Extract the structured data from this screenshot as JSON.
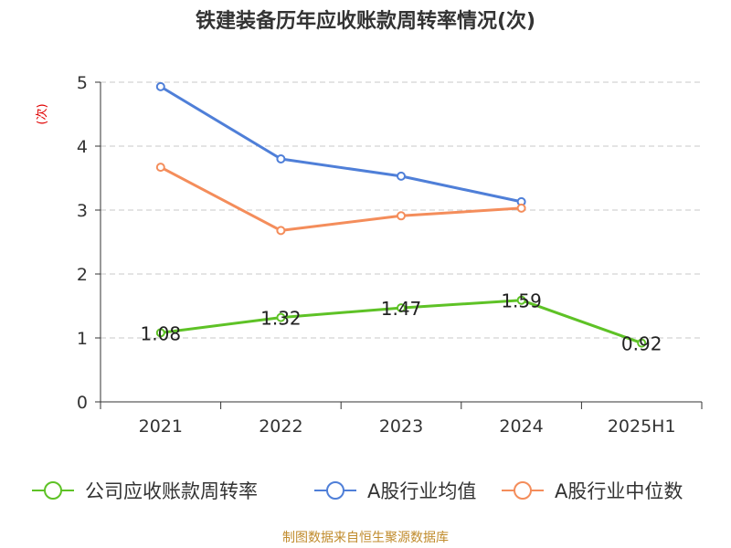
{
  "chart_data": {
    "type": "line",
    "title": "铁建装备历年应收账款周转率情况(次)",
    "ylabel": "(次)",
    "xlabel": "",
    "categories": [
      "2021",
      "2022",
      "2023",
      "2024",
      "2025H1"
    ],
    "ylim": [
      0,
      5
    ],
    "yticks": [
      "0",
      "1",
      "2",
      "3",
      "4",
      "5"
    ],
    "grid": true,
    "legend_position": "bottom",
    "series": [
      {
        "name": "公司应收账款周转率",
        "values": [
          1.08,
          1.32,
          1.47,
          1.59,
          0.92
        ],
        "data_labels": [
          "1.08",
          "1.32",
          "1.47",
          "1.59",
          "0.92"
        ],
        "color": "#5ec226"
      },
      {
        "name": "A股行业均值",
        "values": [
          4.93,
          3.8,
          3.53,
          3.13,
          null
        ],
        "color": "#4f7fd8"
      },
      {
        "name": "A股行业中位数",
        "values": [
          3.67,
          2.68,
          2.91,
          3.03,
          null
        ],
        "color": "#f48d5b"
      }
    ]
  },
  "source": "制图数据来自恒生聚源数据库"
}
